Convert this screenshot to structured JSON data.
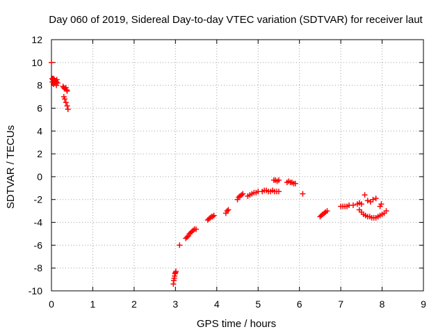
{
  "chart_data": {
    "type": "scatter",
    "title": "Day 060 of 2019, Sidereal Day-to-day VTEC variation (SDTVAR) for receiver laut",
    "xlabel": "GPS time / hours",
    "ylabel": "SDTVAR / TECUs",
    "xlim": [
      0,
      9
    ],
    "ylim": [
      -10,
      12
    ],
    "xticks": [
      "0",
      "1",
      "2",
      "3",
      "4",
      "5",
      "6",
      "7",
      "8",
      "9"
    ],
    "yticks": [
      "-10",
      "-8",
      "-6",
      "-4",
      "-2",
      "0",
      "2",
      "4",
      "6",
      "8",
      "10",
      "12"
    ],
    "grid": true,
    "marker": "+",
    "color": "#ff0000",
    "series": [
      {
        "name": "SDTVAR",
        "x": [
          0.0,
          0.02,
          0.03,
          0.05,
          0.07,
          0.08,
          0.1,
          0.12,
          0.13,
          0.15,
          0.02,
          0.05,
          0.08,
          0.12,
          0.28,
          0.3,
          0.32,
          0.35,
          0.37,
          0.38,
          0.3,
          0.32,
          0.35,
          0.38,
          0.4,
          2.95,
          2.96,
          2.97,
          2.98,
          2.99,
          3.0,
          3.01,
          3.1,
          3.25,
          3.28,
          3.31,
          3.34,
          3.37,
          3.4,
          3.43,
          3.46,
          3.5,
          3.78,
          3.81,
          3.84,
          3.87,
          3.9,
          3.93,
          4.22,
          4.25,
          4.28,
          4.5,
          4.53,
          4.56,
          4.6,
          4.63,
          4.75,
          4.8,
          4.85,
          4.9,
          4.95,
          5.0,
          5.1,
          5.15,
          5.2,
          5.25,
          5.3,
          5.35,
          5.4,
          5.45,
          5.5,
          5.38,
          5.42,
          5.46,
          5.5,
          5.7,
          5.74,
          5.78,
          5.82,
          5.86,
          5.9,
          6.08,
          6.5,
          6.53,
          6.56,
          6.6,
          6.63,
          6.67,
          7.0,
          7.05,
          7.1,
          7.15,
          7.2,
          7.3,
          7.4,
          7.45,
          7.5,
          7.45,
          7.5,
          7.55,
          7.6,
          7.65,
          7.7,
          7.75,
          7.8,
          7.85,
          7.9,
          7.95,
          8.0,
          8.05,
          8.1,
          7.58,
          7.65,
          7.72,
          7.78,
          7.85,
          7.95,
          7.98
        ],
        "y": [
          10.0,
          8.6,
          8.5,
          8.6,
          8.5,
          8.3,
          8.4,
          8.3,
          8.5,
          8.2,
          8.3,
          8.1,
          8.2,
          8.0,
          7.9,
          7.8,
          7.7,
          7.8,
          7.6,
          7.5,
          7.0,
          6.8,
          6.5,
          6.2,
          5.9,
          -9.4,
          -9.1,
          -8.9,
          -8.7,
          -8.5,
          -8.4,
          -8.3,
          -6.0,
          -5.4,
          -5.3,
          -5.2,
          -5.0,
          -4.9,
          -4.8,
          -4.7,
          -4.6,
          -4.6,
          -3.8,
          -3.7,
          -3.6,
          -3.5,
          -3.5,
          -3.4,
          -3.2,
          -3.0,
          -2.9,
          -2.0,
          -1.8,
          -1.7,
          -1.6,
          -1.5,
          -1.7,
          -1.6,
          -1.5,
          -1.4,
          -1.4,
          -1.3,
          -1.3,
          -1.2,
          -1.2,
          -1.3,
          -1.3,
          -1.2,
          -1.3,
          -1.3,
          -1.3,
          -0.3,
          -0.3,
          -0.4,
          -0.3,
          -0.5,
          -0.4,
          -0.5,
          -0.5,
          -0.6,
          -0.6,
          -1.5,
          -3.5,
          -3.4,
          -3.3,
          -3.2,
          -3.1,
          -3.0,
          -2.6,
          -2.6,
          -2.6,
          -2.6,
          -2.5,
          -2.5,
          -2.4,
          -2.3,
          -2.4,
          -2.9,
          -3.1,
          -3.3,
          -3.4,
          -3.5,
          -3.5,
          -3.6,
          -3.6,
          -3.6,
          -3.5,
          -3.4,
          -3.3,
          -3.2,
          -3.0,
          -1.6,
          -2.1,
          -2.2,
          -2.0,
          -1.9,
          -2.6,
          -2.4
        ]
      }
    ]
  }
}
